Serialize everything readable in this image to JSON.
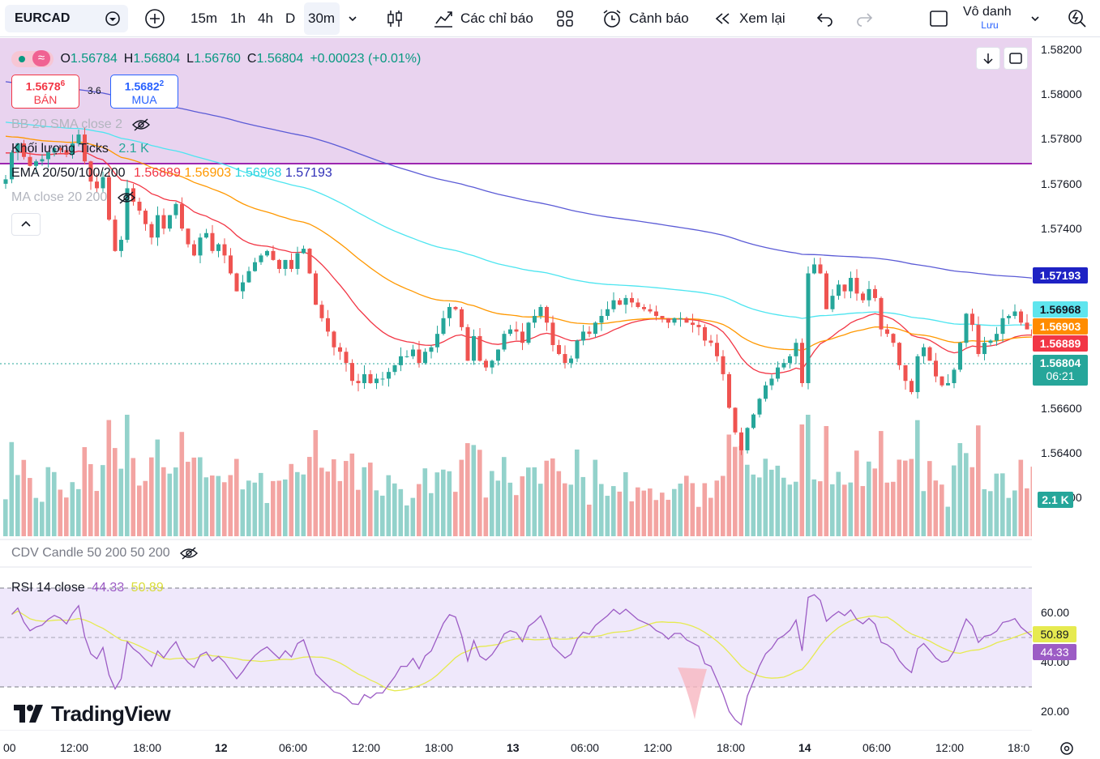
{
  "toolbar": {
    "symbol": "EURCAD",
    "intervals": [
      "15m",
      "1h",
      "4h",
      "D",
      "30m"
    ],
    "indicators_label": "Các chỉ báo",
    "alert_label": "Cảnh báo",
    "replay_label": "Xem lại",
    "layout_name": "Vô danh",
    "layout_status": "Lưu"
  },
  "legend": {
    "ohlc_o_label": "O",
    "ohlc_o": "1.56784",
    "ohlc_h_label": "H",
    "ohlc_h": "1.56804",
    "ohlc_l_label": "L",
    "ohlc_l": "1.56760",
    "ohlc_c_label": "C",
    "ohlc_c": "1.56804",
    "ohlc_change": "+0.00023 (+0.01%)",
    "sell_price_main": "1.5678",
    "sell_price_sup": "6",
    "sell_label": "BÁN",
    "spread": "3.6",
    "buy_price_main": "1.5682",
    "buy_price_sup": "2",
    "buy_label": "MUA",
    "bb": "BB 20 SMA close 2",
    "volume_name": "Khối lượng Ticks",
    "volume_value": "2.1 K",
    "ema_name": "EMA 20/50/100/200",
    "ema20": "1.56889",
    "ema50": "1.56903",
    "ema100": "1.56968",
    "ema200": "1.57193",
    "ma": "MA close 20 200",
    "cdv": "CDV Candle 50 200 50 200",
    "rsi_name": "RSI 14 close",
    "rsi_value": "44.33",
    "rsi_ma": "50.89"
  },
  "price_axis": [
    "1.58200",
    "1.58000",
    "1.57800",
    "1.57600",
    "1.57400",
    "1.56600",
    "1.56400",
    "1.56200"
  ],
  "price_tags": {
    "ema200": "1.57193",
    "ema100": "1.56968",
    "ema50": "1.56903",
    "ema20": "1.56889",
    "last": "1.56804",
    "countdown": "06:21",
    "volume": "2.1 K"
  },
  "rsi_axis": [
    "60.00",
    "40.00",
    "20.00"
  ],
  "rsi_tags": {
    "ma": "50.89",
    "rsi": "44.33"
  },
  "time_axis": [
    "00",
    "12:00",
    "18:00",
    "12",
    "06:00",
    "12:00",
    "18:00",
    "13",
    "06:00",
    "12:00",
    "18:00",
    "14",
    "06:00",
    "12:00",
    "18:0"
  ],
  "logo": "TradingView",
  "colors": {
    "up": "#26a69a",
    "down": "#ef5350",
    "vol_up": "#93d2cb",
    "vol_down": "#f3a4a2",
    "ema20": "#f23645",
    "ema50": "#ff9800",
    "ema100": "#4de5f0",
    "ema200": "#5b5bd6",
    "rsi": "#9c5cc5",
    "rsi_ma": "#e6ea50",
    "purple_line": "#9c27b0"
  },
  "chart_data": {
    "type": "candlestick",
    "symbol": "EURCAD",
    "interval": "30m",
    "ylim": [
      1.5617,
      1.5823
    ],
    "closes": [
      1.5762,
      1.5774,
      1.5778,
      1.5772,
      1.5768,
      1.577,
      1.5771,
      1.5774,
      1.5776,
      1.5775,
      1.5773,
      1.5778,
      1.5782,
      1.577,
      1.5761,
      1.5758,
      1.5763,
      1.5744,
      1.573,
      1.5735,
      1.5758,
      1.5752,
      1.5748,
      1.5742,
      1.5736,
      1.5746,
      1.574,
      1.5746,
      1.5751,
      1.574,
      1.5733,
      1.5728,
      1.5736,
      1.5738,
      1.573,
      1.5733,
      1.5728,
      1.572,
      1.5712,
      1.5716,
      1.5721,
      1.5725,
      1.5728,
      1.573,
      1.5726,
      1.5722,
      1.5726,
      1.5722,
      1.5729,
      1.5731,
      1.572,
      1.5706,
      1.57,
      1.5694,
      1.5687,
      1.5685,
      1.568,
      1.5672,
      1.5671,
      1.5675,
      1.5671,
      1.5673,
      1.5673,
      1.5676,
      1.5679,
      1.5683,
      1.5683,
      1.5686,
      1.568,
      1.5685,
      1.5687,
      1.5693,
      1.57,
      1.5705,
      1.5704,
      1.5696,
      1.5681,
      1.5692,
      1.5681,
      1.5678,
      1.5681,
      1.5686,
      1.5693,
      1.5695,
      1.5694,
      1.5689,
      1.5698,
      1.5701,
      1.5705,
      1.5698,
      1.5688,
      1.5684,
      1.568,
      1.5682,
      1.569,
      1.5694,
      1.5693,
      1.5698,
      1.5701,
      1.5704,
      1.5708,
      1.5706,
      1.5709,
      1.5707,
      1.5705,
      1.5704,
      1.5703,
      1.5701,
      1.57,
      1.5698,
      1.57,
      1.57,
      1.5698,
      1.5697,
      1.5696,
      1.569,
      1.5689,
      1.5683,
      1.5675,
      1.566,
      1.5649,
      1.5641,
      1.5651,
      1.5657,
      1.5664,
      1.567,
      1.5673,
      1.5678,
      1.568,
      1.5683,
      1.5689,
      1.5671,
      1.572,
      1.5724,
      1.572,
      1.5704,
      1.571,
      1.5715,
      1.5712,
      1.5718,
      1.5711,
      1.5708,
      1.5713,
      1.5709,
      1.5695,
      1.5693,
      1.5689,
      1.5679,
      1.5672,
      1.5667,
      1.5683,
      1.5687,
      1.5681,
      1.5674,
      1.567,
      1.5671,
      1.5677,
      1.5689,
      1.5702,
      1.5697,
      1.5684,
      1.5689,
      1.569,
      1.5693,
      1.57,
      1.5701,
      1.5703,
      1.5698,
      1.5695,
      1.5692,
      1.5678,
      1.568
    ]
  }
}
